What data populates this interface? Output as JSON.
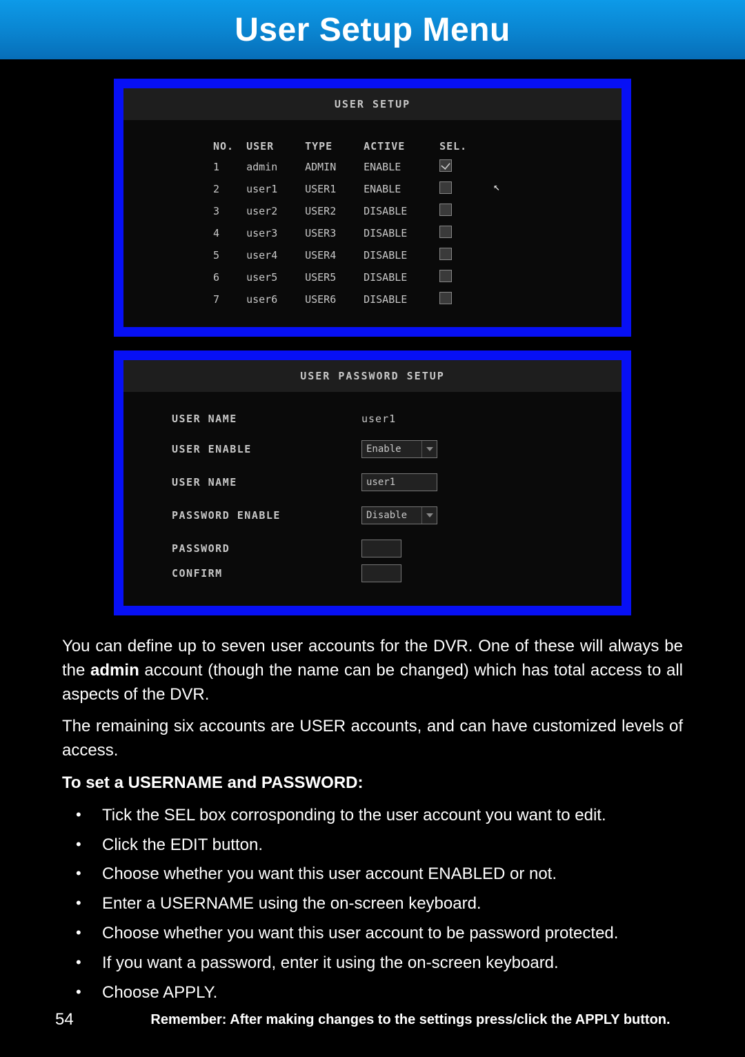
{
  "header": {
    "title": "User Setup Menu"
  },
  "userSetup": {
    "panelTitle": "USER SETUP",
    "columns": {
      "no": "NO.",
      "user": "USER",
      "type": "TYPE",
      "active": "ACTIVE",
      "sel": "SEL."
    },
    "rows": [
      {
        "no": "1",
        "user": "admin",
        "type": "ADMIN",
        "active": "ENABLE",
        "checked": true
      },
      {
        "no": "2",
        "user": "user1",
        "type": "USER1",
        "active": "ENABLE",
        "checked": false
      },
      {
        "no": "3",
        "user": "user2",
        "type": "USER2",
        "active": "DISABLE",
        "checked": false
      },
      {
        "no": "4",
        "user": "user3",
        "type": "USER3",
        "active": "DISABLE",
        "checked": false
      },
      {
        "no": "5",
        "user": "user4",
        "type": "USER4",
        "active": "DISABLE",
        "checked": false
      },
      {
        "no": "6",
        "user": "user5",
        "type": "USER5",
        "active": "DISABLE",
        "checked": false
      },
      {
        "no": "7",
        "user": "user6",
        "type": "USER6",
        "active": "DISABLE",
        "checked": false
      }
    ]
  },
  "passwordSetup": {
    "panelTitle": "USER PASSWORD SETUP",
    "labels": {
      "userName1": "USER NAME",
      "userEnable": "USER ENABLE",
      "userName2": "USER NAME",
      "passwordEnable": "PASSWORD ENABLE",
      "password": "PASSWORD",
      "confirm": "CONFIRM"
    },
    "values": {
      "userName1": "user1",
      "userEnable": "Enable",
      "userName2": "user1",
      "passwordEnable": "Disable",
      "password": "",
      "confirm": ""
    }
  },
  "body": {
    "p1_a": "You can define up to seven user accounts for the DVR. One of these will always be the ",
    "p1_bold": "admin",
    "p1_b": " account (though the name can be changed) which has total access to all aspects of the DVR.",
    "p2": "The remaining six accounts  are USER accounts, and can have customized levels of access.",
    "h1": "To set a USERNAME and PASSWORD:",
    "bullets": [
      "Tick the SEL box corrosponding to the user account you want to edit.",
      "Click the EDIT button.",
      "Choose whether you want this user account ENABLED or not.",
      "Enter a USERNAME using the on-screen keyboard.",
      "Choose whether you want this user account to be password protected.",
      "If you want a password, enter it using the on-screen keyboard.",
      "Choose APPLY."
    ]
  },
  "footer": {
    "pageNumber": "54",
    "note": "Remember: After making changes to the settings press/click the APPLY button."
  },
  "colors": {
    "headerGradientTop": "#0d9ae8",
    "headerGradientBottom": "#076eb8",
    "frameBlue": "#0710f5",
    "panelBg": "#0a0a0a",
    "panelHeaderBg": "#1e1e1e",
    "textLight": "#c8c8c8",
    "docText": "#ffffff"
  }
}
